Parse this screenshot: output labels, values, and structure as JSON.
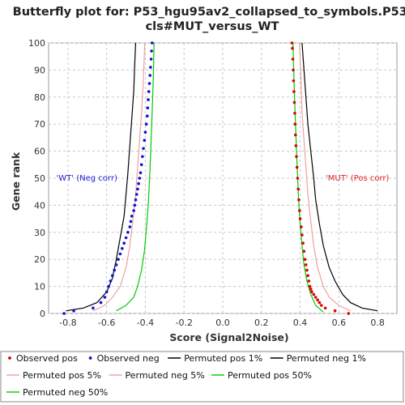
{
  "chart_data": {
    "type": "line",
    "title": "Butterfly plot for: P53_hgu95av2_collapsed_to_symbols.P53.",
    "subtitle": "cls#MUT_versus_WT",
    "xlabel": "Score (Signal2Noise)",
    "ylabel": "Gene rank",
    "xlim": [
      -0.9,
      0.9
    ],
    "ylim": [
      0,
      100
    ],
    "x_ticks": [
      -0.8,
      -0.6,
      -0.4,
      -0.2,
      0.0,
      0.2,
      0.4,
      0.6,
      0.8
    ],
    "x_tick_labels": [
      "-0.8",
      "-0.6",
      "-0.4",
      "-0.2",
      "0.0",
      "0.2",
      "0.4",
      "0.6",
      "0.8"
    ],
    "y_ticks": [
      0,
      10,
      20,
      30,
      40,
      50,
      60,
      70,
      80,
      90,
      100
    ],
    "y_tick_labels": [
      "0",
      "10",
      "20",
      "30",
      "40",
      "50",
      "60",
      "70",
      "80",
      "90",
      "100"
    ],
    "grid": true,
    "legend_position": "bottom",
    "annotations": [
      {
        "text": "'WT' (Neg corr)",
        "x": -0.86,
        "y": 50,
        "color": "#2222cc",
        "align": "start"
      },
      {
        "text": "'MUT' (Pos corr)",
        "x": 0.86,
        "y": 50,
        "color": "#dd2222",
        "align": "end"
      }
    ],
    "series": [
      {
        "name": "Observed pos",
        "kind": "points",
        "color": "#dd0000",
        "points": [
          [
            0.65,
            0
          ],
          [
            0.58,
            1
          ],
          [
            0.53,
            2
          ],
          [
            0.51,
            3
          ],
          [
            0.5,
            4
          ],
          [
            0.49,
            5
          ],
          [
            0.48,
            6
          ],
          [
            0.47,
            7
          ],
          [
            0.46,
            8
          ],
          [
            0.455,
            9
          ],
          [
            0.45,
            10
          ],
          [
            0.445,
            12
          ],
          [
            0.44,
            14
          ],
          [
            0.435,
            16
          ],
          [
            0.43,
            18
          ],
          [
            0.425,
            20
          ],
          [
            0.42,
            23
          ],
          [
            0.415,
            26
          ],
          [
            0.41,
            29
          ],
          [
            0.405,
            32
          ],
          [
            0.4,
            35
          ],
          [
            0.397,
            38
          ],
          [
            0.393,
            42
          ],
          [
            0.39,
            46
          ],
          [
            0.387,
            50
          ],
          [
            0.384,
            54
          ],
          [
            0.381,
            58
          ],
          [
            0.378,
            62
          ],
          [
            0.376,
            66
          ],
          [
            0.374,
            70
          ],
          [
            0.372,
            74
          ],
          [
            0.37,
            78
          ],
          [
            0.368,
            82
          ],
          [
            0.366,
            86
          ],
          [
            0.364,
            90
          ],
          [
            0.362,
            94
          ],
          [
            0.36,
            98
          ],
          [
            0.358,
            100
          ]
        ]
      },
      {
        "name": "Observed neg",
        "kind": "points",
        "color": "#1111cc",
        "points": [
          [
            -0.82,
            0
          ],
          [
            -0.77,
            1
          ],
          [
            -0.67,
            2
          ],
          [
            -0.63,
            4
          ],
          [
            -0.61,
            6
          ],
          [
            -0.6,
            8
          ],
          [
            -0.59,
            10
          ],
          [
            -0.58,
            12
          ],
          [
            -0.57,
            14
          ],
          [
            -0.56,
            16
          ],
          [
            -0.55,
            18
          ],
          [
            -0.54,
            20
          ],
          [
            -0.53,
            22
          ],
          [
            -0.52,
            24
          ],
          [
            -0.51,
            26
          ],
          [
            -0.5,
            28
          ],
          [
            -0.49,
            30
          ],
          [
            -0.48,
            32
          ],
          [
            -0.475,
            34
          ],
          [
            -0.47,
            36
          ],
          [
            -0.46,
            38
          ],
          [
            -0.455,
            40
          ],
          [
            -0.45,
            42
          ],
          [
            -0.445,
            44
          ],
          [
            -0.44,
            46
          ],
          [
            -0.435,
            48
          ],
          [
            -0.43,
            50
          ],
          [
            -0.425,
            52
          ],
          [
            -0.42,
            55
          ],
          [
            -0.415,
            58
          ],
          [
            -0.41,
            61
          ],
          [
            -0.405,
            64
          ],
          [
            -0.4,
            67
          ],
          [
            -0.395,
            70
          ],
          [
            -0.39,
            73
          ],
          [
            -0.388,
            76
          ],
          [
            -0.385,
            79
          ],
          [
            -0.382,
            82
          ],
          [
            -0.379,
            85
          ],
          [
            -0.376,
            88
          ],
          [
            -0.373,
            91
          ],
          [
            -0.37,
            94
          ],
          [
            -0.368,
            97
          ],
          [
            -0.365,
            100
          ]
        ]
      },
      {
        "name": "Permuted pos 1%",
        "kind": "line",
        "color": "#000000",
        "points": [
          [
            0.8,
            1
          ],
          [
            0.72,
            2
          ],
          [
            0.66,
            4
          ],
          [
            0.62,
            7
          ],
          [
            0.58,
            12
          ],
          [
            0.55,
            17
          ],
          [
            0.52,
            25
          ],
          [
            0.5,
            33
          ],
          [
            0.48,
            42
          ],
          [
            0.47,
            50
          ],
          [
            0.455,
            60
          ],
          [
            0.44,
            70
          ],
          [
            0.43,
            80
          ],
          [
            0.42,
            90
          ],
          [
            0.41,
            100
          ]
        ]
      },
      {
        "name": "Permuted neg 1%",
        "kind": "line",
        "color": "#000000",
        "points": [
          [
            -0.81,
            1
          ],
          [
            -0.72,
            2
          ],
          [
            -0.65,
            4
          ],
          [
            -0.6,
            8
          ],
          [
            -0.57,
            13
          ],
          [
            -0.55,
            20
          ],
          [
            -0.53,
            28
          ],
          [
            -0.51,
            36
          ],
          [
            -0.5,
            44
          ],
          [
            -0.49,
            52
          ],
          [
            -0.48,
            62
          ],
          [
            -0.47,
            72
          ],
          [
            -0.46,
            82
          ],
          [
            -0.455,
            92
          ],
          [
            -0.45,
            100
          ]
        ]
      },
      {
        "name": "Permuted pos 5%",
        "kind": "line",
        "color": "#f0a0a0",
        "points": [
          [
            0.66,
            1
          ],
          [
            0.6,
            3
          ],
          [
            0.55,
            6
          ],
          [
            0.52,
            10
          ],
          [
            0.49,
            17
          ],
          [
            0.47,
            25
          ],
          [
            0.455,
            34
          ],
          [
            0.44,
            44
          ],
          [
            0.43,
            54
          ],
          [
            0.42,
            64
          ],
          [
            0.41,
            74
          ],
          [
            0.405,
            84
          ],
          [
            0.4,
            94
          ],
          [
            0.397,
            100
          ]
        ]
      },
      {
        "name": "Permuted neg 5%",
        "kind": "line",
        "color": "#f0a0a0",
        "points": [
          [
            -0.67,
            1
          ],
          [
            -0.61,
            3
          ],
          [
            -0.57,
            6
          ],
          [
            -0.53,
            10
          ],
          [
            -0.5,
            17
          ],
          [
            -0.48,
            25
          ],
          [
            -0.465,
            34
          ],
          [
            -0.45,
            44
          ],
          [
            -0.44,
            54
          ],
          [
            -0.43,
            64
          ],
          [
            -0.42,
            74
          ],
          [
            -0.412,
            84
          ],
          [
            -0.406,
            94
          ],
          [
            -0.403,
            100
          ]
        ]
      },
      {
        "name": "Permuted pos 50%",
        "kind": "line",
        "color": "#00cc00",
        "points": [
          [
            0.52,
            0.5
          ],
          [
            0.48,
            3
          ],
          [
            0.455,
            7
          ],
          [
            0.435,
            12
          ],
          [
            0.42,
            18
          ],
          [
            0.41,
            25
          ],
          [
            0.4,
            33
          ],
          [
            0.392,
            42
          ],
          [
            0.386,
            52
          ],
          [
            0.38,
            62
          ],
          [
            0.375,
            72
          ],
          [
            0.37,
            82
          ],
          [
            0.366,
            92
          ],
          [
            0.363,
            100
          ]
        ]
      },
      {
        "name": "Permuted neg 50%",
        "kind": "line",
        "color": "#00cc00",
        "points": [
          [
            -0.55,
            1
          ],
          [
            -0.5,
            3
          ],
          [
            -0.46,
            6
          ],
          [
            -0.44,
            10
          ],
          [
            -0.42,
            16
          ],
          [
            -0.405,
            23
          ],
          [
            -0.395,
            31
          ],
          [
            -0.385,
            40
          ],
          [
            -0.378,
            50
          ],
          [
            -0.372,
            60
          ],
          [
            -0.367,
            70
          ],
          [
            -0.362,
            80
          ],
          [
            -0.358,
            90
          ],
          [
            -0.355,
            100
          ]
        ]
      }
    ]
  },
  "legend": {
    "rows": [
      [
        {
          "label": "Observed pos",
          "marker": "point",
          "color": "#dd0000"
        },
        {
          "label": "Observed neg",
          "marker": "point",
          "color": "#1111cc"
        },
        {
          "label": "Permuted pos 1%",
          "marker": "line",
          "color": "#000000"
        },
        {
          "label": "Permuted neg 1%",
          "marker": "line",
          "color": "#000000"
        }
      ],
      [
        {
          "label": "Permuted pos 5%",
          "marker": "line",
          "color": "#f0a0a0"
        },
        {
          "label": "Permuted neg 5%",
          "marker": "line",
          "color": "#f0a0a0"
        },
        {
          "label": "Permuted pos 50%",
          "marker": "line",
          "color": "#00cc00"
        }
      ],
      [
        {
          "label": "Permuted neg 50%",
          "marker": "line",
          "color": "#00cc00"
        }
      ]
    ]
  }
}
